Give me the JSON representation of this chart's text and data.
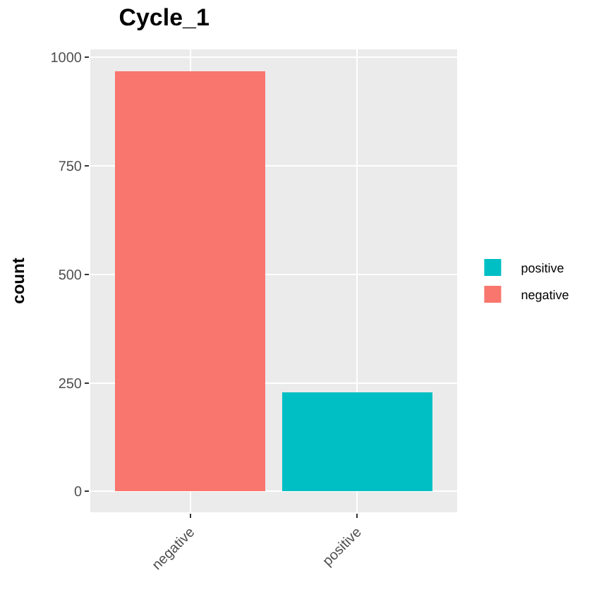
{
  "chart_data": {
    "type": "bar",
    "title": "Cycle_1",
    "ylabel": "count",
    "categories": [
      "negative",
      "positive"
    ],
    "series": [
      {
        "name": "negative",
        "color": "#f8766d",
        "values": [
          967,
          null
        ]
      },
      {
        "name": "positive",
        "color": "#00bfc4",
        "values": [
          null,
          228
        ]
      }
    ],
    "stacked": true,
    "ylim": [
      -48,
      1018
    ],
    "yticks": [
      0,
      250,
      500,
      750,
      1000
    ],
    "grid": true,
    "legend": "right"
  }
}
